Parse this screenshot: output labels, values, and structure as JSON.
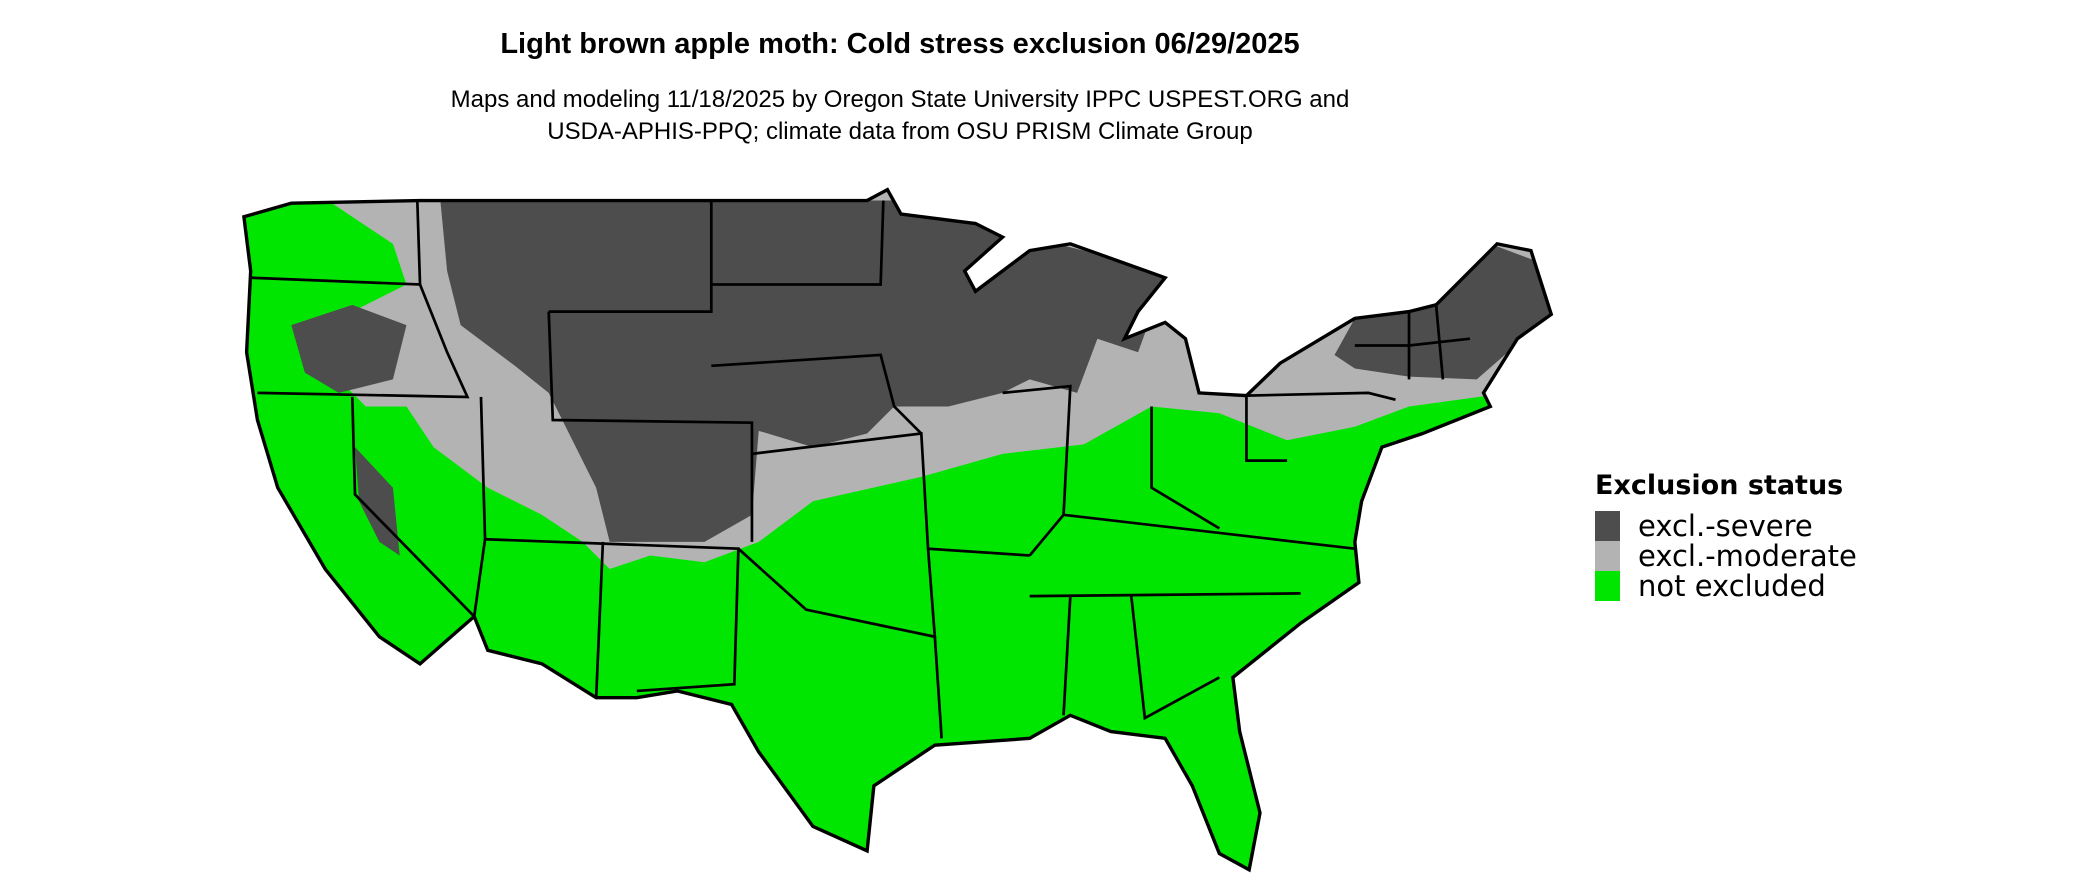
{
  "title": "Light brown apple moth: Cold stress exclusion 06/29/2025",
  "subtitle_lines": [
    "Maps and modeling 11/18/2025 by Oregon State University IPPC USPEST.ORG and",
    "USDA-APHIS-PPQ; climate data from OSU PRISM Climate Group"
  ],
  "legend": {
    "title": "Exclusion status",
    "items": [
      {
        "label": "excl.-severe",
        "color": "#4d4d4d"
      },
      {
        "label": "excl.-moderate",
        "color": "#b3b3b3"
      },
      {
        "label": "not excluded",
        "color": "#00e600"
      }
    ]
  },
  "map": {
    "region": "Contiguous United States",
    "border_color": "#000000"
  }
}
